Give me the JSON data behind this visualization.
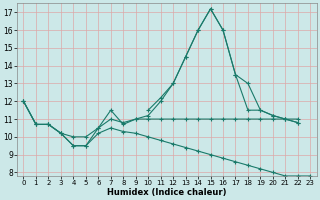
{
  "xlabel": "Humidex (Indice chaleur)",
  "xlim": [
    -0.5,
    23.5
  ],
  "ylim": [
    7.8,
    17.5
  ],
  "yticks": [
    8,
    9,
    10,
    11,
    12,
    13,
    14,
    15,
    16,
    17
  ],
  "xticks": [
    0,
    1,
    2,
    3,
    4,
    5,
    6,
    7,
    8,
    9,
    10,
    11,
    12,
    13,
    14,
    15,
    16,
    17,
    18,
    19,
    20,
    21,
    22,
    23
  ],
  "bg_color": "#cce8e8",
  "grid_color": "#dda8a8",
  "line_color": "#1a7a6a",
  "series1_x": [
    0,
    1,
    2,
    3,
    4,
    5,
    6,
    7,
    8,
    9,
    10,
    11,
    12,
    13,
    14,
    15,
    16,
    17,
    18,
    19,
    20,
    21,
    22
  ],
  "series1_y": [
    12.0,
    10.7,
    10.7,
    10.2,
    9.5,
    9.5,
    10.5,
    11.5,
    10.7,
    11.0,
    11.2,
    12.0,
    13.0,
    14.5,
    16.0,
    17.2,
    16.0,
    13.5,
    13.0,
    11.5,
    11.2,
    11.0,
    10.8
  ],
  "series2_x": [
    0,
    1,
    2,
    3,
    4,
    5,
    6,
    7,
    8,
    9,
    10,
    11,
    12,
    13,
    14,
    15,
    16,
    17,
    18,
    19,
    20,
    21,
    22
  ],
  "series2_y": [
    12.0,
    10.7,
    10.7,
    10.2,
    10.0,
    10.0,
    10.5,
    11.0,
    10.8,
    11.0,
    11.0,
    11.0,
    11.0,
    11.0,
    11.0,
    11.0,
    11.0,
    11.0,
    11.0,
    11.0,
    11.0,
    11.0,
    11.0
  ],
  "series3_x": [
    0,
    1,
    2,
    3,
    4,
    5,
    6,
    7,
    8,
    9,
    10,
    11,
    12,
    13,
    14,
    15,
    16,
    17,
    18,
    19,
    20,
    21,
    22,
    23
  ],
  "series3_y": [
    12.0,
    10.7,
    10.7,
    10.2,
    9.5,
    9.5,
    10.2,
    10.5,
    10.3,
    10.2,
    10.0,
    9.8,
    9.6,
    9.4,
    9.2,
    9.0,
    8.8,
    8.6,
    8.4,
    8.2,
    8.0,
    7.8,
    7.8,
    7.8
  ],
  "series4_x": [
    10,
    11,
    12,
    13,
    14,
    15,
    16,
    17,
    18,
    19,
    20,
    21,
    22
  ],
  "series4_y": [
    11.5,
    12.2,
    13.0,
    14.5,
    16.0,
    17.2,
    16.0,
    13.5,
    11.5,
    11.5,
    11.2,
    11.0,
    10.8
  ],
  "figsize": [
    3.2,
    2.0
  ],
  "dpi": 100
}
